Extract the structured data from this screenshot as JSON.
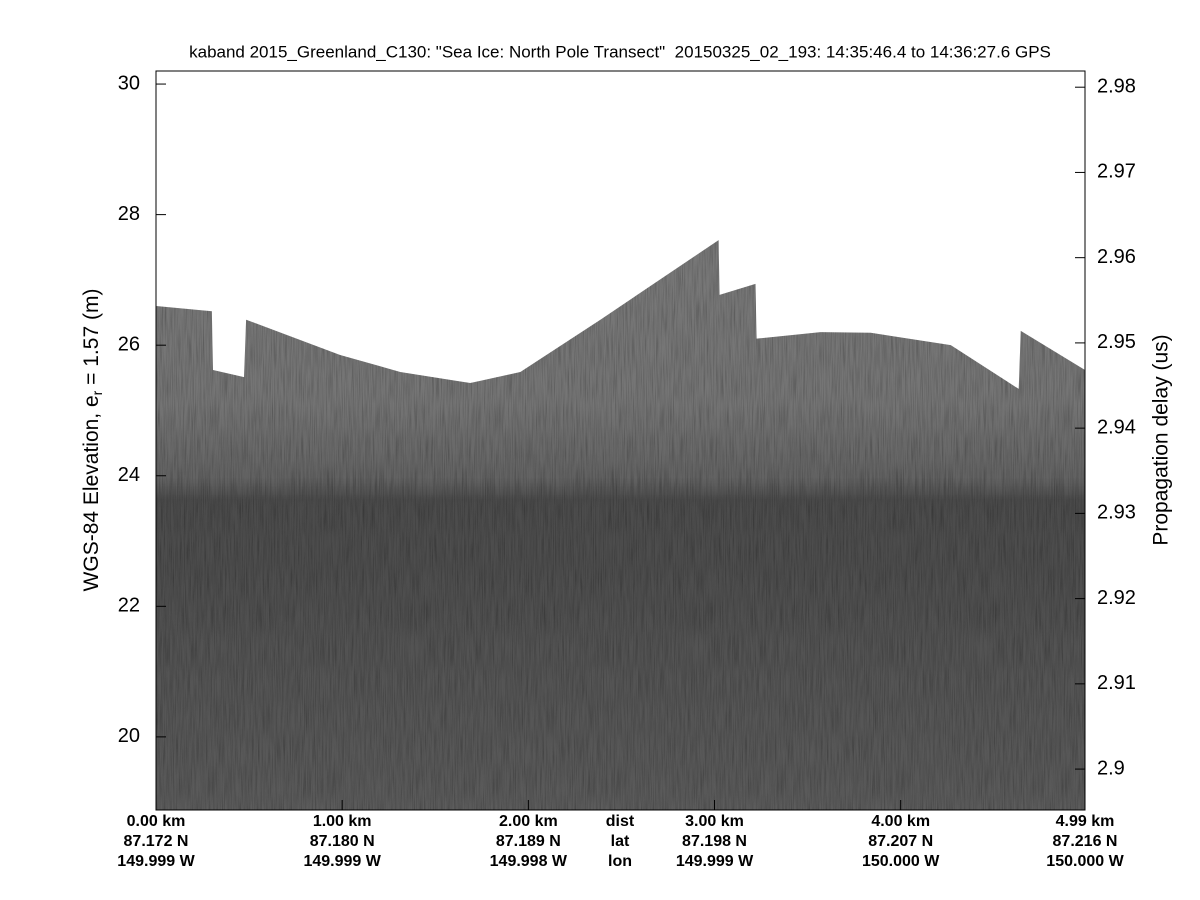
{
  "chart_data": {
    "type": "echogram",
    "title": "kaband 2015_Greenland_C130: \"Sea Ice: North Pole Transect\"  20150325_02_193: 14:35:46.4 to 14:36:27.6 GPS",
    "ylabel": "WGS-84 Elevation, e",
    "ylabel_sub": "r",
    "ylabel_tail": " = 1.57 (m)",
    "y2label": "Propagation delay (us)",
    "xlim": [
      0,
      4.99
    ],
    "xticks": [
      {
        "value": 0,
        "label": "0.00 km"
      },
      {
        "value": 1,
        "label": "1.00 km"
      },
      {
        "value": 2,
        "label": "2.00 km"
      },
      {
        "value": 3,
        "label": "3.00 km"
      },
      {
        "value": 4,
        "label": "4.00 km"
      },
      {
        "value": 4.99,
        "label": "4.99 km"
      }
    ],
    "xtick_lat": [
      "87.172 N",
      "87.180 N",
      "87.189 N",
      "87.198 N",
      "87.207 N",
      "87.216 N"
    ],
    "xtick_lon": [
      "149.999 W",
      "149.999 W",
      "149.998 W",
      "149.999 W",
      "150.000 W",
      "150.000 W"
    ],
    "xtick_row_names": [
      "dist",
      "lat",
      "lon"
    ],
    "ylim": [
      18.88,
      30.2
    ],
    "yticks": [
      20,
      22,
      24,
      26,
      28,
      30
    ],
    "y2lim": [
      2.8952,
      2.9819
    ],
    "y2ticks": [
      2.9,
      2.91,
      2.92,
      2.93,
      2.94,
      2.95,
      2.96,
      2.97,
      2.98
    ],
    "surface": {
      "x": [
        0,
        0.3,
        0.306,
        0.473,
        0.484,
        0.989,
        1.312,
        1.688,
        1.957,
        2.387,
        3.022,
        3.027,
        3.22,
        3.226,
        3.57,
        3.839,
        4.269,
        4.634,
        4.645,
        4.99
      ],
      "values": [
        26.6,
        26.52,
        25.62,
        25.51,
        26.39,
        25.85,
        25.59,
        25.42,
        25.59,
        26.39,
        27.61,
        26.77,
        26.94,
        26.1,
        26.2,
        26.19,
        26.0,
        25.33,
        26.22,
        25.62
      ]
    }
  }
}
